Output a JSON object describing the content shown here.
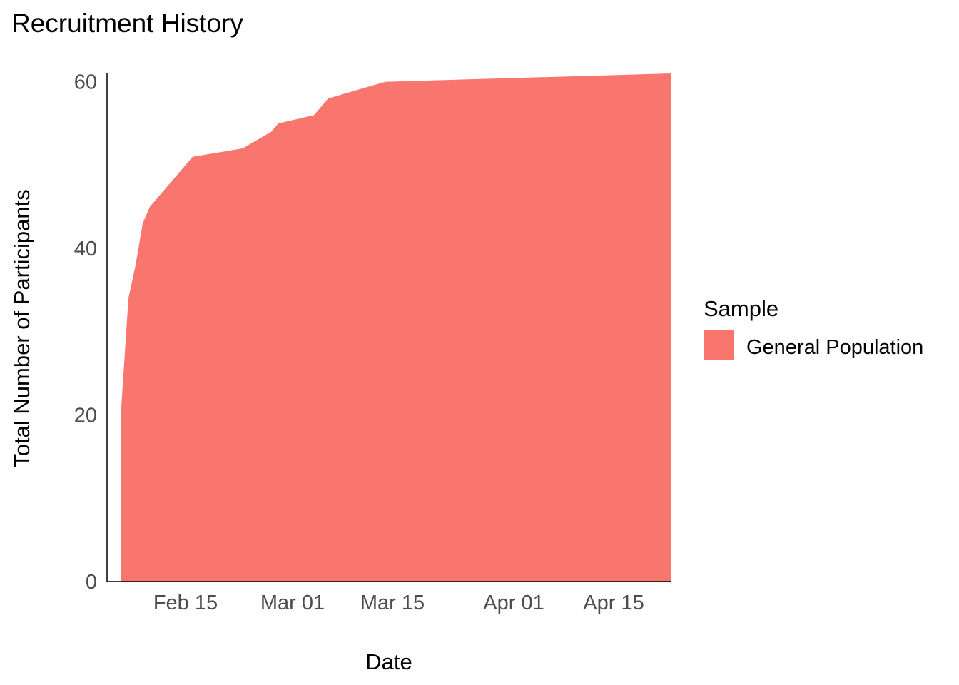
{
  "chart_data": {
    "type": "area",
    "title": "Recruitment History",
    "xlabel": "Date",
    "ylabel": "Total Number of Participants",
    "x_range": [
      "2020-02-04",
      "2020-04-23"
    ],
    "ylim": [
      0,
      61
    ],
    "x_ticks": [
      {
        "date": "2020-02-15",
        "label": "Feb 15"
      },
      {
        "date": "2020-03-01",
        "label": "Mar 01"
      },
      {
        "date": "2020-03-15",
        "label": "Mar 15"
      },
      {
        "date": "2020-04-01",
        "label": "Apr 01"
      },
      {
        "date": "2020-04-15",
        "label": "Apr 15"
      }
    ],
    "y_ticks": [
      0,
      20,
      40,
      60
    ],
    "grid": false,
    "legend": {
      "title": "Sample",
      "position": "right"
    },
    "series": [
      {
        "name": "General Population",
        "color": "#F8766D",
        "points": [
          {
            "x": "2020-02-06",
            "y": 21
          },
          {
            "x": "2020-02-07",
            "y": 34
          },
          {
            "x": "2020-02-08",
            "y": 38
          },
          {
            "x": "2020-02-09",
            "y": 43
          },
          {
            "x": "2020-02-10",
            "y": 45
          },
          {
            "x": "2020-02-11",
            "y": 46
          },
          {
            "x": "2020-02-13",
            "y": 48
          },
          {
            "x": "2020-02-16",
            "y": 51
          },
          {
            "x": "2020-02-23",
            "y": 52
          },
          {
            "x": "2020-02-27",
            "y": 54
          },
          {
            "x": "2020-02-28",
            "y": 55
          },
          {
            "x": "2020-03-04",
            "y": 56
          },
          {
            "x": "2020-03-06",
            "y": 58
          },
          {
            "x": "2020-03-10",
            "y": 59
          },
          {
            "x": "2020-03-14",
            "y": 60
          },
          {
            "x": "2020-04-23",
            "y": 61
          }
        ]
      }
    ]
  }
}
